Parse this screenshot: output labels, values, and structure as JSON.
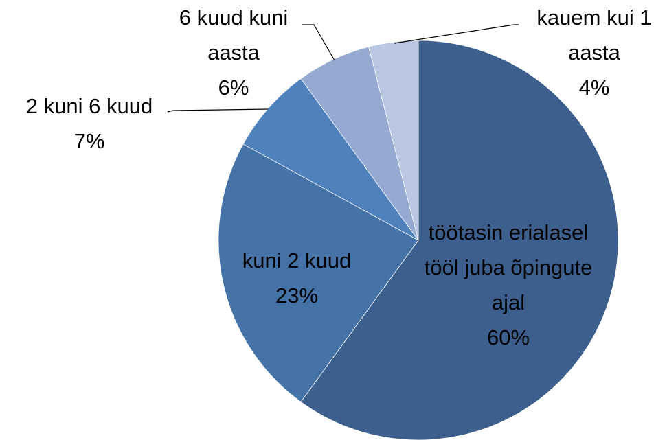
{
  "chart_data": {
    "type": "pie",
    "categories": [
      "töötasin erialasel tööl juba õpingute ajal",
      "kuni 2 kuud",
      "2 kuni 6 kuud",
      "6 kuud kuni aasta",
      "kauem kui 1 aasta"
    ],
    "values": [
      60,
      23,
      7,
      6,
      4
    ],
    "value_labels": [
      "60%",
      "23%",
      "7%",
      "6%",
      "4%"
    ],
    "colors": [
      "#3c5f8e",
      "#4572a7",
      "#4f81bd",
      "#95a9d1",
      "#b9c7e2"
    ]
  }
}
